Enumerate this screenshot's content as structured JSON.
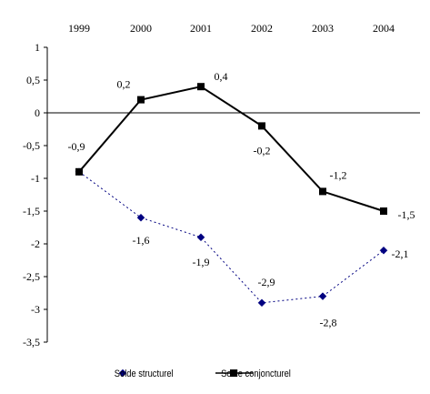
{
  "chart_data": {
    "type": "line",
    "categories": [
      "1999",
      "2000",
      "2001",
      "2002",
      "2003",
      "2004"
    ],
    "ylim": [
      -3.5,
      1
    ],
    "yticks": [
      1,
      0.5,
      0,
      -0.5,
      -1,
      -1.5,
      -2,
      -2.5,
      -3,
      -3.5
    ],
    "ytick_labels": [
      "1",
      "0,5",
      "0",
      "-0,5",
      "-1",
      "-1,5",
      "-2",
      "-2,5",
      "-3",
      "-3,5"
    ],
    "grid": false,
    "legend_position": "bottom",
    "series": [
      {
        "name": "Solde structurel",
        "values": [
          -0.9,
          -1.6,
          -1.9,
          -2.9,
          -2.8,
          -2.1
        ],
        "labels": [
          "",
          "-1,6",
          "-1,9",
          "-2,9",
          "-2,8",
          "-2,1"
        ],
        "color": "#000080",
        "line_style": "dotted",
        "marker": "diamond"
      },
      {
        "name": "Solde conjoncturel",
        "values": [
          -0.9,
          0.2,
          0.4,
          -0.2,
          -1.2,
          -1.5
        ],
        "labels": [
          "-0,9",
          "0,2",
          "0,4",
          "-0,2",
          "-1,2",
          "-1,5"
        ],
        "color": "#000000",
        "line_style": "solid",
        "marker": "square"
      }
    ]
  }
}
